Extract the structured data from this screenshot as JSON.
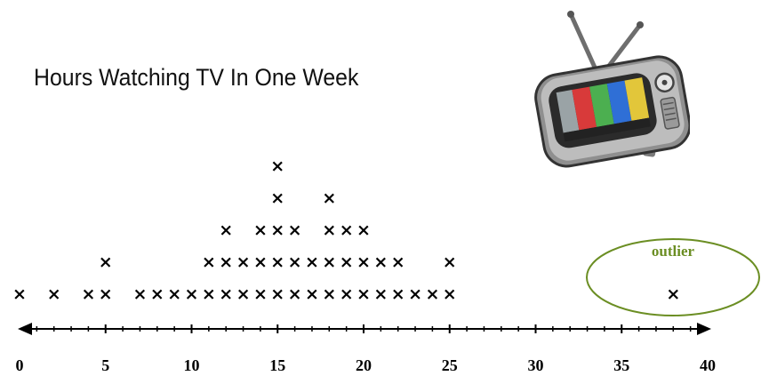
{
  "chart_data": {
    "type": "dot_plot",
    "title": "Hours Watching TV In One Week",
    "xlim": [
      0,
      40
    ],
    "x_ticks": [
      0,
      5,
      10,
      15,
      20,
      25,
      30,
      35,
      40
    ],
    "minor_tick_step": 1,
    "marker": "×",
    "points": [
      {
        "x": 0,
        "count": 1
      },
      {
        "x": 2,
        "count": 1
      },
      {
        "x": 4,
        "count": 1
      },
      {
        "x": 5,
        "count": 2
      },
      {
        "x": 7,
        "count": 1
      },
      {
        "x": 8,
        "count": 1
      },
      {
        "x": 9,
        "count": 1
      },
      {
        "x": 10,
        "count": 1
      },
      {
        "x": 11,
        "count": 2
      },
      {
        "x": 12,
        "count": 3
      },
      {
        "x": 13,
        "count": 2
      },
      {
        "x": 14,
        "count": 3
      },
      {
        "x": 15,
        "count": 5
      },
      {
        "x": 16,
        "count": 3
      },
      {
        "x": 17,
        "count": 2
      },
      {
        "x": 18,
        "count": 4
      },
      {
        "x": 19,
        "count": 3
      },
      {
        "x": 20,
        "count": 3
      },
      {
        "x": 21,
        "count": 2
      },
      {
        "x": 22,
        "count": 2
      },
      {
        "x": 23,
        "count": 1
      },
      {
        "x": 24,
        "count": 1
      },
      {
        "x": 25,
        "count": 2
      },
      {
        "x": 38,
        "count": 1
      }
    ],
    "annotation": {
      "text": "outlier",
      "x": 38,
      "color": "#6b8e23"
    }
  },
  "colors": {
    "marker": "#000000",
    "annotation_text": "#6b8e23",
    "annotation_border": "#6b8e23"
  },
  "decoration": {
    "icon": "television-icon"
  }
}
